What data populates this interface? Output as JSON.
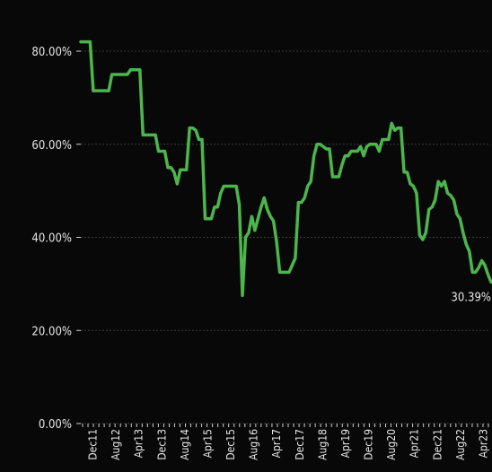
{
  "chart_data": {
    "type": "line",
    "title": "",
    "xlabel": "",
    "ylabel": "",
    "ylim": [
      0,
      85
    ],
    "y_ticks": [
      0,
      20,
      40,
      60,
      80
    ],
    "y_tick_labels": [
      "0.00%",
      "20.00%",
      "40.00%",
      "60.00%",
      "80.00%"
    ],
    "x_tick_labels": [
      "Dec11",
      "Aug12",
      "Apr13",
      "Dec13",
      "Aug14",
      "Apr15",
      "Dec15",
      "Aug16",
      "Apr17",
      "Dec17",
      "Aug18",
      "Apr19",
      "Dec19",
      "Aug20",
      "Apr21",
      "Dec21",
      "Aug22",
      "Apr23"
    ],
    "grid": true,
    "line_color": "#4cb54c",
    "series": [
      {
        "values": [
          82.0,
          82.0,
          82.0,
          82.0,
          71.5,
          71.5,
          71.5,
          71.5,
          71.5,
          71.5,
          75.0,
          75.0,
          75.0,
          75.0,
          75.0,
          75.0,
          76.0,
          76.0,
          76.0,
          76.0,
          62.0,
          62.0,
          62.0,
          62.0,
          62.0,
          58.5,
          58.5,
          58.5,
          55.0,
          55.0,
          54.0,
          51.5,
          54.5,
          54.5,
          54.5,
          63.5,
          63.5,
          63.0,
          61.0,
          61.0,
          44.0,
          44.0,
          44.0,
          46.5,
          46.5,
          49.5,
          51.0,
          51.0,
          51.0,
          51.0,
          51.0,
          47.0,
          27.5,
          40.0,
          41.0,
          44.5,
          41.5,
          44.0,
          46.5,
          48.5,
          46.0,
          44.5,
          43.5,
          39.0,
          32.5,
          32.5,
          32.5,
          32.5,
          34.0,
          35.5,
          47.5,
          47.5,
          48.5,
          51.0,
          52.0,
          57.5,
          60.0,
          60.0,
          59.5,
          59.0,
          59.0,
          53.0,
          53.0,
          53.0,
          55.5,
          57.5,
          57.5,
          58.5,
          58.5,
          58.5,
          59.5,
          57.5,
          59.5,
          60.0,
          60.0,
          60.0,
          58.5,
          61.0,
          61.0,
          61.0,
          64.5,
          63.0,
          63.5,
          63.5,
          54.0,
          54.0,
          51.5,
          51.0,
          49.5,
          40.5,
          39.5,
          41.0,
          46.0,
          46.5,
          48.0,
          52.0,
          51.0,
          52.0,
          49.5,
          49.0,
          48.0,
          45.0,
          44.0,
          41.0,
          38.5,
          37.0,
          32.5,
          32.5,
          33.5,
          35.0,
          34.0,
          32.0,
          30.39
        ]
      }
    ],
    "annotations": [
      {
        "text": "30.39%"
      }
    ]
  }
}
